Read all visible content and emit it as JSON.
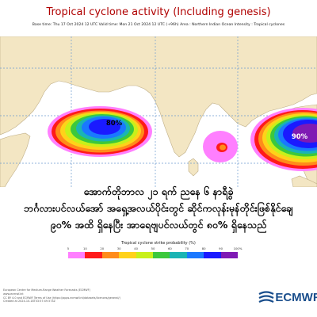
{
  "title": "Tropical cyclone activity (Including genesis)",
  "subtitle": "Base time: Thu 17 Oct 2024 12 UTC Valid time: Mon 21 Oct 2024 12 UTC (+96h) Area : Northern Indian Ocean Intensity : Tropical cyclones",
  "areas": [
    {
      "label": "80%",
      "probability_percent": 80
    },
    {
      "label": "",
      "probability_percent": 20
    },
    {
      "label": "90%",
      "probability_percent": 90
    }
  ],
  "caption_lines": [
    "အောက်တိုဘာလ ၂၁ ရက် ညနေ ၆ နာရီခွဲ",
    "ဘင်္ဂလားပင်လယ်အော် အရှေ့အလယ်ပိုင်းတွင် ဆိုင်ကလုန်းမုန်တိုင်းဖြစ်နိုင်ချေ",
    "၉၀% အထိ ရှိနေပြီး အာရေဗျပင်လယ်တွင် ၈၀% ရှိနေသည်"
  ],
  "legend": {
    "title": "Tropical cyclone strike probability (%)",
    "ticks": [
      "5",
      "10",
      "20",
      "30",
      "40",
      "50",
      "60",
      "70",
      "80",
      "90",
      "100%"
    ],
    "colors": [
      "#ff7fff",
      "#ff1a1a",
      "#ff8c1a",
      "#ffd21a",
      "#c8f01a",
      "#3cc83c",
      "#1ab4b4",
      "#1a78ff",
      "#1a1aff",
      "#7f1ab4"
    ]
  },
  "footer_lines": [
    "European Centre for Medium-Range Weather Forecasts (ECMWF)",
    "www.ecmwf.int",
    "CC BY 4.0 and ECMWF Terms of Use (https://apps.ecmwf.int/datasets/licences/general/)",
    "Created at 2024-10-18T03:57:49.573Z"
  ],
  "logo_text": "ECMWF",
  "colors": {
    "title": "#b00000",
    "land": "#f3e6c3",
    "sea": "#ffffff",
    "grid": "#6c9ad0"
  }
}
